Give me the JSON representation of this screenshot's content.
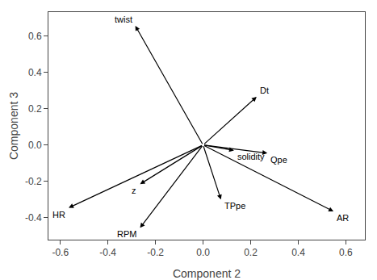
{
  "chart_data": {
    "type": "arrows",
    "xlabel": "Component 2",
    "ylabel": "Component 3",
    "xlim": [
      -0.65,
      0.68
    ],
    "ylim": [
      -0.52,
      0.73
    ],
    "xticks": [
      -0.6,
      -0.4,
      -0.2,
      {
        "value": 0.0,
        "label": "0.0"
      },
      0.2,
      0.4,
      0.6
    ],
    "yticks": [
      -0.4,
      -0.2,
      {
        "value": 0.0,
        "label": "0.0"
      },
      0.2,
      0.4,
      0.6
    ],
    "labels": [
      "twist",
      "HR",
      "z",
      "RPM",
      "Dt",
      "solidity",
      "Qpe",
      "TPpe",
      "AR"
    ],
    "x": [
      -0.285,
      -0.565,
      -0.265,
      -0.265,
      0.225,
      0.13,
      0.27,
      0.075,
      0.548
    ],
    "values": [
      0.655,
      -0.345,
      -0.215,
      -0.455,
      0.265,
      -0.03,
      -0.045,
      -0.3,
      -0.365
    ],
    "color": "#000000",
    "grid": false
  }
}
